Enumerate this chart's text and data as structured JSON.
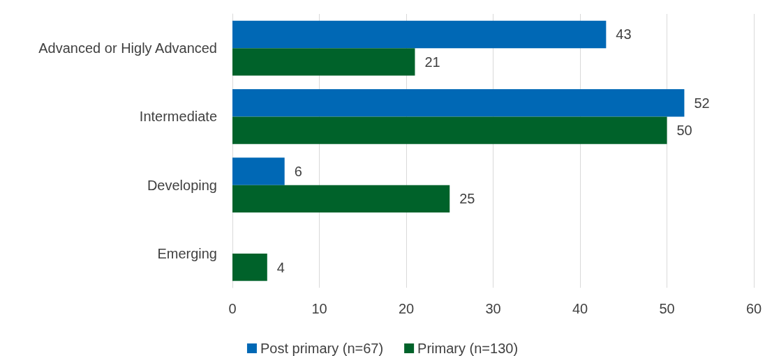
{
  "chart_data": {
    "type": "bar",
    "orientation": "horizontal",
    "categories": [
      "Advanced or Higly Advanced",
      "Intermediate",
      "Developing",
      "Emerging"
    ],
    "series": [
      {
        "name": "Post primary (n=67)",
        "color": "#0068b5",
        "values": [
          43,
          52,
          6,
          null
        ]
      },
      {
        "name": "Primary (n=130)",
        "color": "#00622a",
        "values": [
          21,
          50,
          25,
          4
        ]
      }
    ],
    "xlim": [
      0,
      60
    ],
    "xticks": [
      0,
      10,
      20,
      30,
      40,
      50,
      60
    ],
    "grid": "x",
    "legend": "bottom",
    "data_labels": true
  }
}
